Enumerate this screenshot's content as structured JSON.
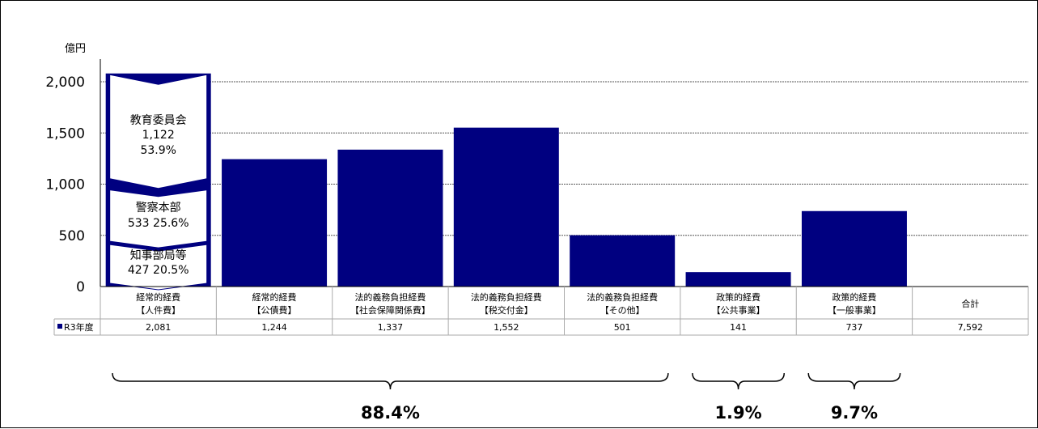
{
  "chart_data": {
    "type": "bar",
    "unit_label": "億円",
    "y_ticks": [
      "0",
      "500",
      "1,000",
      "1,500",
      "2,000"
    ],
    "ylim": [
      0,
      2200
    ],
    "gridlines": true,
    "categories": [
      [
        "経常的経費",
        "【人件費】"
      ],
      [
        "経常的経費",
        "【公債費】"
      ],
      [
        "法的義務負担経費",
        "【社会保障関係費】"
      ],
      [
        "法的義務負担経費",
        "【税交付金】"
      ],
      [
        "法的義務負担経費",
        "【その他】"
      ],
      [
        "政策的経費",
        "【公共事業】"
      ],
      [
        "政策的経費",
        "【一般事業】"
      ],
      [
        "合計"
      ]
    ],
    "series": [
      {
        "name": "R3年度",
        "values": [
          2081,
          1244,
          1337,
          1552,
          501,
          141,
          737,
          7592
        ],
        "value_labels": [
          "2,081",
          "1,244",
          "1,337",
          "1,552",
          "501",
          "141",
          "737",
          "7,592"
        ],
        "plotted": [
          true,
          true,
          true,
          true,
          true,
          true,
          true,
          false
        ],
        "color": "#000080"
      }
    ],
    "first_bar_breakdown": [
      {
        "name": "教育委員会",
        "lines": [
          "教育委員会",
          "1,122",
          "53.9%"
        ],
        "value": 1122,
        "share": "53.9%"
      },
      {
        "name": "警察本部",
        "lines": [
          "警察本部",
          "533  25.6%"
        ],
        "value": 533,
        "share": "25.6%"
      },
      {
        "name": "知事部局等",
        "lines": [
          "知事部局等",
          "427 20.5%"
        ],
        "value": 427,
        "share": "20.5%"
      }
    ],
    "group_shares": [
      {
        "label": "88.4%",
        "from": 0,
        "to": 4
      },
      {
        "label": "1.9%",
        "from": 5,
        "to": 5
      },
      {
        "label": "9.7%",
        "from": 6,
        "to": 6
      }
    ]
  },
  "colors": {
    "bar": "#000080",
    "grid": "#555555",
    "table_border": "#aaaaaa"
  }
}
